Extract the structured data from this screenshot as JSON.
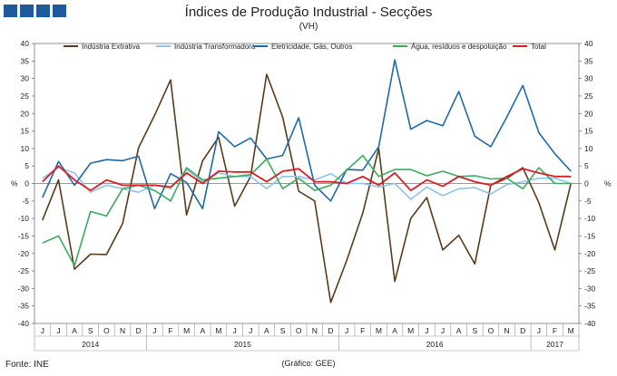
{
  "header": {
    "title": "Índices de Produção Industrial - Secções",
    "subtitle": "(VH)"
  },
  "footer": {
    "source": "Fonte: INE",
    "graphic": "(Gráfico: GEE)"
  },
  "chart_data": {
    "type": "line",
    "title": "Índices de Produção Industrial - Secções",
    "subtitle": "(VH)",
    "ylabel": "%",
    "ylim": [
      -40,
      40
    ],
    "yticks": [
      -40,
      -35,
      -30,
      -25,
      -20,
      -15,
      -10,
      -5,
      0,
      5,
      10,
      15,
      20,
      25,
      30,
      35,
      40
    ],
    "months": [
      "J",
      "J",
      "A",
      "S",
      "O",
      "N",
      "D",
      "J",
      "F",
      "M",
      "A",
      "M",
      "J",
      "J",
      "A",
      "S",
      "O",
      "N",
      "D",
      "J",
      "F",
      "M",
      "A",
      "M",
      "J",
      "J",
      "A",
      "S",
      "O",
      "N",
      "D",
      "J",
      "F",
      "M"
    ],
    "years": [
      {
        "label": "2014",
        "start": 0,
        "end": 6
      },
      {
        "label": "2015",
        "start": 7,
        "end": 18
      },
      {
        "label": "2016",
        "start": 19,
        "end": 30
      },
      {
        "label": "2017",
        "start": 31,
        "end": 33
      }
    ],
    "series": [
      {
        "name": "Indústria Extrativa",
        "color": "#5a3a1c",
        "values": [
          -10.5,
          1,
          -24.5,
          -20.2,
          -20.3,
          -11.5,
          10.2,
          19.5,
          29.6,
          -9,
          6.5,
          13.2,
          -6.5,
          2,
          31.2,
          19,
          -2.2,
          -5,
          -34,
          -22,
          -8.5,
          10,
          -28,
          -10,
          -4,
          -19,
          -14.8,
          -23,
          -0.5,
          1.5,
          4.5,
          -5.5,
          -19,
          0
        ]
      },
      {
        "name": "Indústria Transformadora",
        "color": "#8ec3ea",
        "values": [
          1.5,
          4.5,
          3,
          -2.5,
          -0.5,
          -1.5,
          -2.5,
          -0.5,
          -1.5,
          4,
          0.5,
          3,
          2,
          2,
          -1.5,
          2,
          2,
          1,
          2.8,
          0,
          0,
          -1,
          0,
          -4.5,
          -1,
          -3.5,
          -1.5,
          -1.2,
          -3,
          -0.3,
          0.5,
          1.5,
          1.5,
          0
        ]
      },
      {
        "name": "Eletricidade, Gás, Outros",
        "color": "#1f6aa6",
        "values": [
          -4,
          6.3,
          -0.5,
          5.8,
          6.8,
          6.5,
          7.8,
          -7.2,
          2.8,
          0.3,
          -7.2,
          14.8,
          10.5,
          13,
          7,
          8,
          18.8,
          -0.5,
          -5,
          4,
          3.8,
          10.5,
          35.3,
          15.5,
          18,
          16.5,
          26.3,
          13.5,
          10.5,
          19,
          28,
          14.5,
          8.5,
          3.5
        ]
      },
      {
        "name": "Água, resíduos e despoluição",
        "color": "#3aaa5c",
        "values": [
          -17,
          -15,
          -23.5,
          -8,
          -9.3,
          -1.5,
          -0.5,
          -2,
          -5,
          4.5,
          1,
          1.5,
          2,
          2.5,
          7,
          -1.5,
          1.5,
          -2,
          -0.5,
          3.8,
          8,
          2,
          4,
          4,
          2.2,
          3.5,
          2,
          2.2,
          1.3,
          1.5,
          -1.5,
          4.5,
          0,
          0
        ]
      },
      {
        "name": "Total",
        "color": "#d91f26",
        "values": [
          0.5,
          5,
          1,
          -2,
          1,
          -0.5,
          -0.5,
          -0.5,
          -1,
          3,
          0,
          3.5,
          3.3,
          3.3,
          0.5,
          3.5,
          4.2,
          0.5,
          0.5,
          0,
          2,
          -0.5,
          3,
          -2,
          1,
          -0.8,
          2,
          0.5,
          -0.5,
          2,
          4.2,
          3,
          2,
          2
        ]
      }
    ]
  }
}
